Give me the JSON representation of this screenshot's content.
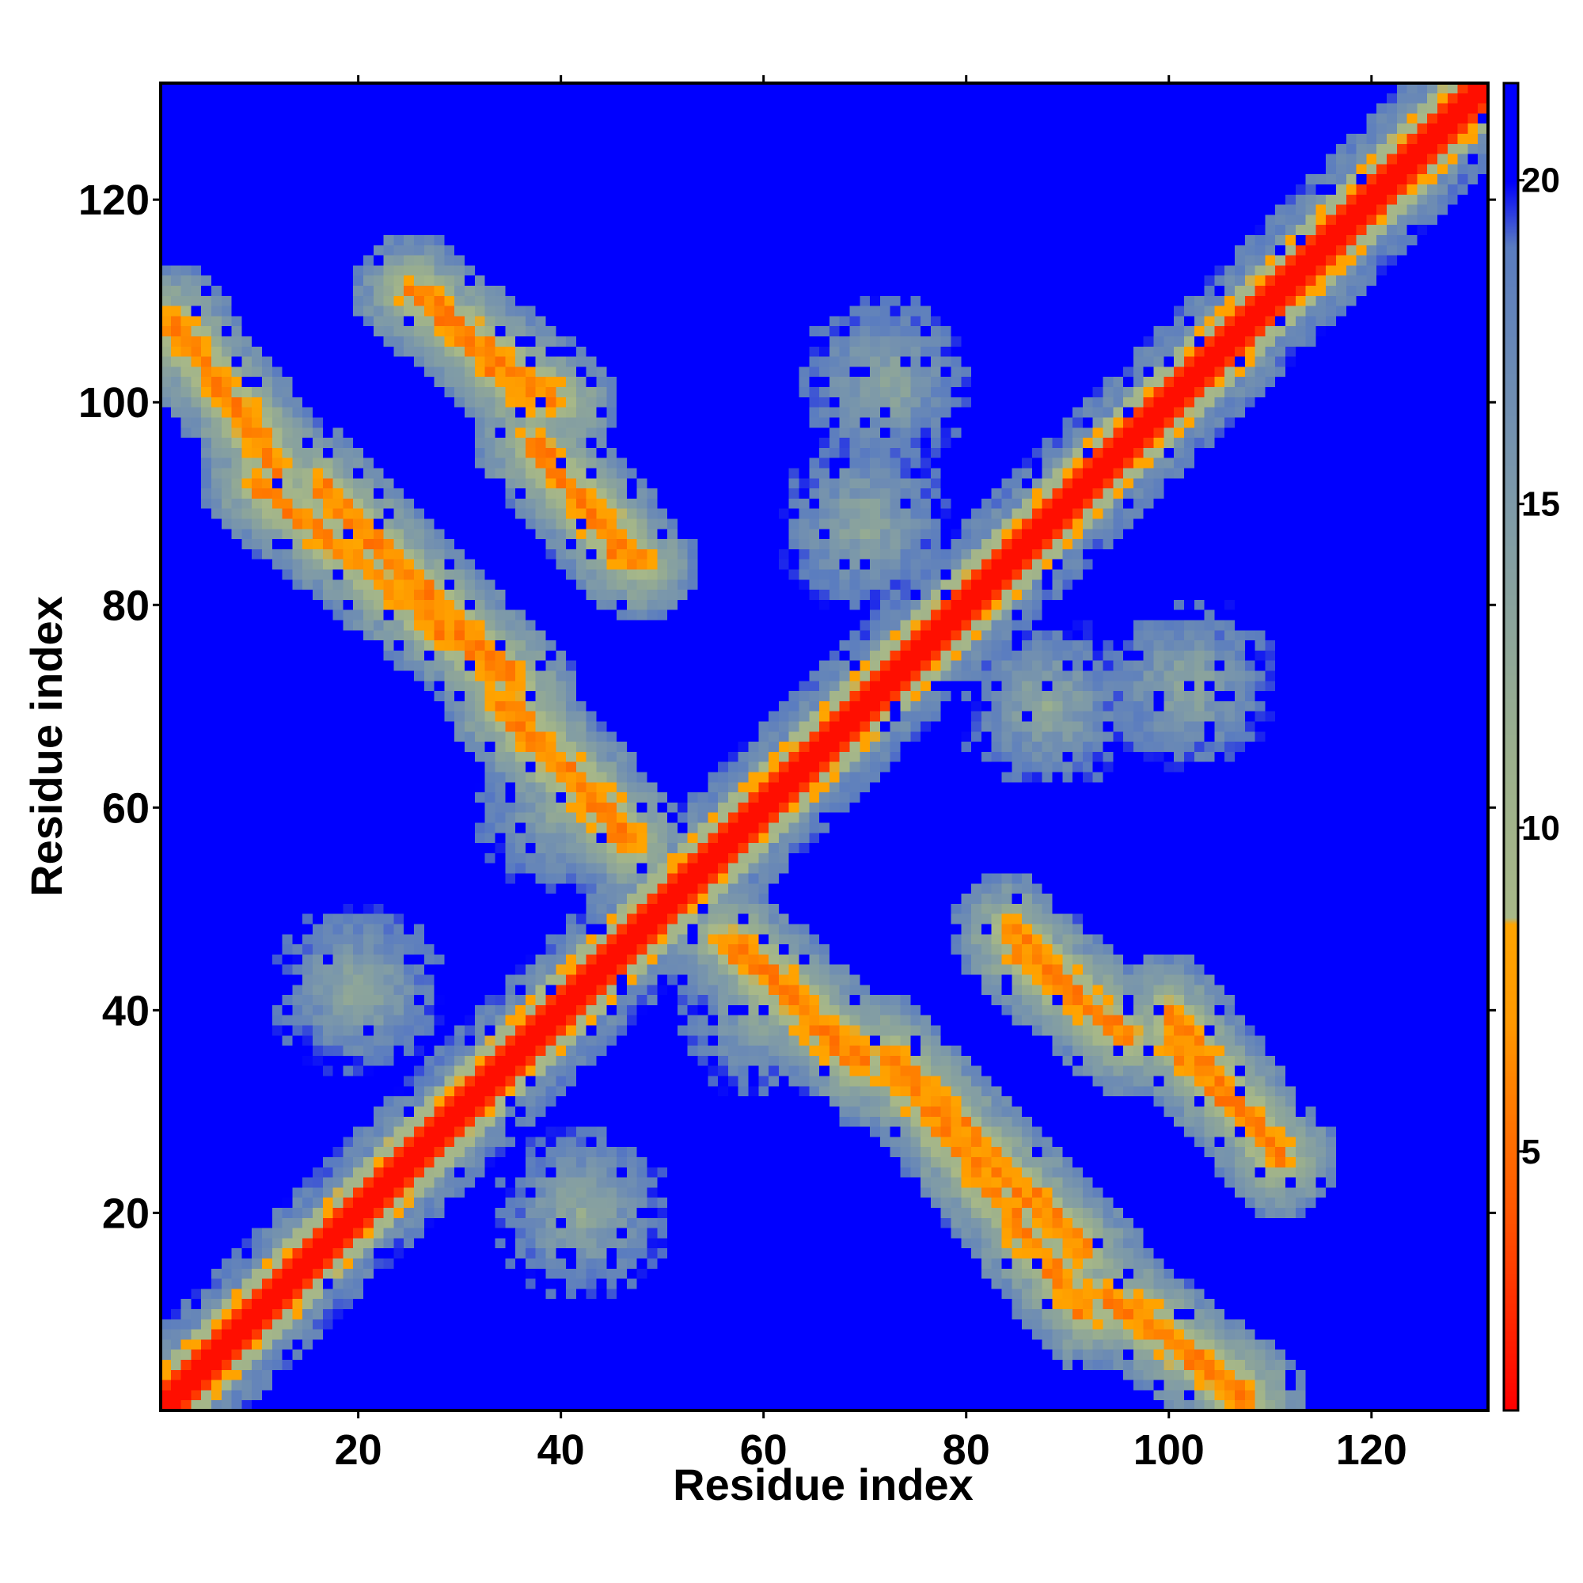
{
  "chart_data": {
    "type": "heatmap",
    "title": "",
    "xlabel": "Residue index",
    "ylabel": "Residue index",
    "n_residues": 131,
    "xlim": [
      1,
      131
    ],
    "ylim": [
      1,
      131
    ],
    "x_ticks": [
      20,
      40,
      60,
      80,
      100,
      120
    ],
    "y_ticks": [
      20,
      40,
      60,
      80,
      100,
      120
    ],
    "colorbar": {
      "ticks": [
        5,
        10,
        15,
        20
      ],
      "range": [
        1,
        21.5
      ],
      "stops": [
        {
          "value": 1.0,
          "color": "#ff0000"
        },
        {
          "value": 4.0,
          "color": "#ff5500"
        },
        {
          "value": 7.0,
          "color": "#ff9900"
        },
        {
          "value": 8.5,
          "color": "#ffa500"
        },
        {
          "value": 8.6,
          "color": "#a8b888"
        },
        {
          "value": 11.0,
          "color": "#9cb08c"
        },
        {
          "value": 15.0,
          "color": "#7e9aa8"
        },
        {
          "value": 19.0,
          "color": "#5a7cc0"
        },
        {
          "value": 20.0,
          "color": "#0000ff"
        },
        {
          "value": 21.5,
          "color": "#0000ff"
        }
      ]
    },
    "background_color": "#0000ff",
    "diagonal_color": "#ff0000",
    "features": {
      "diagonal_band": {
        "width_residues": 3,
        "value": 2
      },
      "antiparallel_contact_lines": [
        {
          "from": [
            1,
            108
          ],
          "to": [
            11,
            96
          ]
        },
        {
          "from": [
            10,
            92
          ],
          "to": [
            34,
            73
          ]
        },
        {
          "from": [
            25,
            111
          ],
          "to": [
            40,
            100
          ]
        },
        {
          "from": [
            35,
            70
          ],
          "to": [
            47,
            57
          ]
        },
        {
          "from": [
            38,
            95
          ],
          "to": [
            48,
            84
          ]
        },
        {
          "from": [
            56,
            47
          ],
          "to": [
            70,
            34
          ]
        },
        {
          "from": [
            72,
            36
          ],
          "to": [
            92,
            16
          ]
        },
        {
          "from": [
            85,
            46
          ],
          "to": [
            96,
            37
          ]
        },
        {
          "from": [
            93,
            12
          ],
          "to": [
            108,
            2
          ]
        },
        {
          "from": [
            100,
            37
          ],
          "to": [
            111,
            26
          ]
        }
      ],
      "diffuse_contact_regions": [
        {
          "center": [
            20,
            42
          ]
        },
        {
          "center": [
            42,
            20
          ]
        },
        {
          "center": [
            72,
            102
          ]
        },
        {
          "center": [
            102,
            72
          ]
        },
        {
          "center": [
            70,
            88
          ]
        },
        {
          "center": [
            88,
            70
          ]
        },
        {
          "center": [
            40,
            60
          ]
        },
        {
          "center": [
            60,
            40
          ]
        }
      ]
    }
  }
}
